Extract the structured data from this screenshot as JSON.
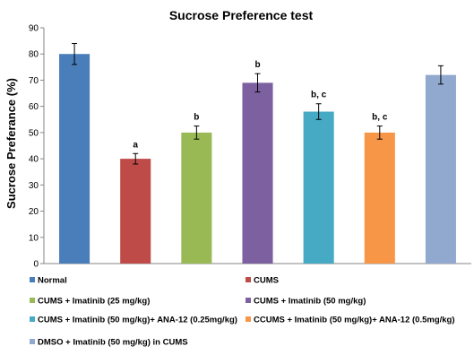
{
  "chart_data": {
    "type": "bar",
    "title": "Sucrose Preference test",
    "xlabel": "",
    "ylabel": "Sucrose Preferance (%)",
    "ylim": [
      0,
      90
    ],
    "ytick_step": 10,
    "grid": false,
    "legend_position": "bottom",
    "categories": [
      "Normal",
      "CUMS",
      "CUMS + Imatinib (25 mg/kg)",
      "CUMS + Imatinib (50 mg/kg)",
      "CUMS + Imatinib (50 mg/kg)+ ANA-12 (0.25mg/kg)",
      "CCUMS + Imatinib (50 mg/kg)+ ANA-12 (0.5mg/kg)",
      "DMSO + Imatinib (50  mg/kg) in CUMS"
    ],
    "values": [
      80,
      40,
      50,
      69,
      58,
      50,
      72
    ],
    "errors": [
      4,
      2,
      2.5,
      3.5,
      3,
      2.5,
      3.5
    ],
    "annotations": [
      "",
      "a",
      "b",
      "b",
      "b, c",
      "b, c",
      ""
    ],
    "colors": [
      "#4a7ebb",
      "#be4b48",
      "#98b954",
      "#7d60a0",
      "#46aac5",
      "#f79646",
      "#92a9cf"
    ]
  }
}
